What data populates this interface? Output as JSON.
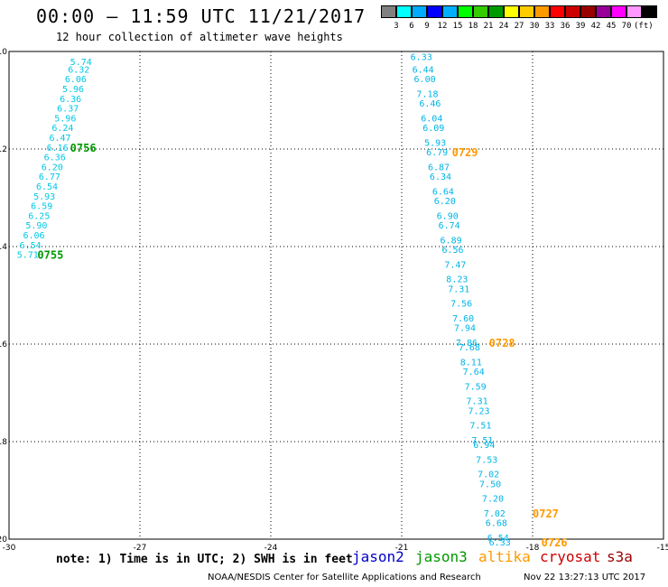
{
  "header": {
    "title": "00:00 — 11:59 UTC 11/21/2017",
    "subtitle": "12 hour collection of altimeter wave heights"
  },
  "colorbar": {
    "colors": [
      "#808080",
      "#00ffff",
      "#00aaff",
      "#0000ff",
      "#00b0ff",
      "#00ff00",
      "#33cc00",
      "#009900",
      "#ffff00",
      "#ffcc00",
      "#ff9900",
      "#ff0000",
      "#cc0000",
      "#990000",
      "#990099",
      "#ff00ff",
      "#ff99ff",
      "#000000"
    ],
    "labels": [
      "3",
      "6",
      "9",
      "12",
      "15",
      "18",
      "21",
      "24",
      "27",
      "30",
      "33",
      "36",
      "39",
      "42",
      "45",
      "70",
      "(ft)"
    ]
  },
  "note": "note: 1) Time is in UTC; 2) SWH is in feet",
  "satellites": [
    {
      "name": "jason2",
      "color": "#0000cc"
    },
    {
      "name": "jason3",
      "color": "#009900"
    },
    {
      "name": "altika",
      "color": "#ff9900"
    },
    {
      "name": "cryosat",
      "color": "#cc0000"
    },
    {
      "name": "s3a",
      "color": "#990000"
    }
  ],
  "footer": {
    "left": "NOAA/NESDIS Center for Satellite Applications and Research",
    "right": "Nov 22 13:27:13 UTC 2017"
  },
  "chart_data": {
    "type": "scatter",
    "xlim": [
      -30,
      -15
    ],
    "ylim": [
      -20,
      -10
    ],
    "xticks": [
      "-30",
      "-27",
      "-24",
      "-21",
      "-18",
      "-15"
    ],
    "xtick_values": [
      -30,
      -27,
      -24,
      -21,
      -18,
      -15
    ],
    "yticks": [
      "-10",
      "-12",
      "-14",
      "-16",
      "-18",
      "-20"
    ],
    "ytick_values": [
      -10,
      -12,
      -14,
      -16,
      -18,
      -20
    ],
    "grid": true,
    "series": [
      {
        "name": "jason3",
        "label_color": "#009900",
        "value_color": "#00c8e6",
        "points": [
          {
            "x": -28.6,
            "y": -10.2,
            "v": "5.74"
          },
          {
            "x": -28.65,
            "y": -10.36,
            "v": "6.32"
          },
          {
            "x": -28.72,
            "y": -10.56,
            "v": "6.06"
          },
          {
            "x": -28.78,
            "y": -10.76,
            "v": "5.96"
          },
          {
            "x": -28.84,
            "y": -10.96,
            "v": "6.36"
          },
          {
            "x": -28.9,
            "y": -11.16,
            "v": "6.37"
          },
          {
            "x": -28.96,
            "y": -11.36,
            "v": "5.96"
          },
          {
            "x": -29.02,
            "y": -11.56,
            "v": "6.24"
          },
          {
            "x": -29.08,
            "y": -11.76,
            "v": "6.47"
          },
          {
            "x": -29.14,
            "y": -11.96,
            "v": "6.16"
          },
          {
            "x": -29.2,
            "y": -12.16,
            "v": "6.36"
          },
          {
            "x": -29.26,
            "y": -12.36,
            "v": "6.20"
          },
          {
            "x": -29.32,
            "y": -12.56,
            "v": "6.77"
          },
          {
            "x": -29.38,
            "y": -12.76,
            "v": "6.54"
          },
          {
            "x": -29.44,
            "y": -12.96,
            "v": "5.93"
          },
          {
            "x": -29.5,
            "y": -13.16,
            "v": "6.59"
          },
          {
            "x": -29.56,
            "y": -13.36,
            "v": "6.25"
          },
          {
            "x": -29.62,
            "y": -13.56,
            "v": "5.90"
          },
          {
            "x": -29.68,
            "y": -13.76,
            "v": "6.06"
          },
          {
            "x": -29.76,
            "y": -13.96,
            "v": "6.54"
          },
          {
            "x": -29.82,
            "y": -14.16,
            "v": "5.71"
          }
        ],
        "times": [
          {
            "x": -28.6,
            "y": -11.96,
            "t": "0756"
          },
          {
            "x": -29.35,
            "y": -14.16,
            "t": "0755"
          }
        ]
      },
      {
        "name": "altika",
        "label_color": "#ff9900",
        "value_color": "#00b4e6",
        "points": [
          {
            "x": -20.8,
            "y": -10.1,
            "v": "6.33"
          },
          {
            "x": -20.76,
            "y": -10.36,
            "v": "6.44"
          },
          {
            "x": -20.72,
            "y": -10.56,
            "v": "6.00"
          },
          {
            "x": -20.66,
            "y": -10.86,
            "v": "7.18"
          },
          {
            "x": -20.6,
            "y": -11.06,
            "v": "6.46"
          },
          {
            "x": -20.56,
            "y": -11.36,
            "v": "6.04"
          },
          {
            "x": -20.52,
            "y": -11.56,
            "v": "6.09"
          },
          {
            "x": -20.48,
            "y": -11.86,
            "v": "5.93"
          },
          {
            "x": -20.44,
            "y": -12.06,
            "v": "6.79"
          },
          {
            "x": -20.4,
            "y": -12.36,
            "v": "6.87"
          },
          {
            "x": -20.36,
            "y": -12.56,
            "v": "6.34"
          },
          {
            "x": -20.3,
            "y": -12.86,
            "v": "6.64"
          },
          {
            "x": -20.26,
            "y": -13.06,
            "v": "6.20"
          },
          {
            "x": -20.2,
            "y": -13.36,
            "v": "6.90"
          },
          {
            "x": -20.16,
            "y": -13.56,
            "v": "6.74"
          },
          {
            "x": -20.12,
            "y": -13.86,
            "v": "6.89"
          },
          {
            "x": -20.08,
            "y": -14.06,
            "v": "6.56"
          },
          {
            "x": -20.02,
            "y": -14.36,
            "v": "7.47"
          },
          {
            "x": -19.98,
            "y": -14.66,
            "v": "8.23"
          },
          {
            "x": -19.94,
            "y": -14.86,
            "v": "7.31"
          },
          {
            "x": -19.88,
            "y": -15.16,
            "v": "7.56"
          },
          {
            "x": -19.84,
            "y": -15.46,
            "v": "7.60"
          },
          {
            "x": -19.8,
            "y": -15.66,
            "v": "7.94"
          },
          {
            "x": -19.76,
            "y": -15.96,
            "v": "7.86"
          },
          {
            "x": -19.7,
            "y": -16.06,
            "v": "7.68"
          },
          {
            "x": -19.66,
            "y": -16.36,
            "v": "8.11"
          },
          {
            "x": -19.6,
            "y": -16.56,
            "v": "7.64"
          },
          {
            "x": -19.56,
            "y": -16.86,
            "v": "7.59"
          },
          {
            "x": -19.52,
            "y": -17.16,
            "v": "7.31"
          },
          {
            "x": -19.48,
            "y": -17.36,
            "v": "7.23"
          },
          {
            "x": -19.44,
            "y": -17.66,
            "v": "7.51"
          },
          {
            "x": -19.4,
            "y": -17.96,
            "v": "7.51"
          },
          {
            "x": -19.36,
            "y": -18.06,
            "v": "6.94"
          },
          {
            "x": -19.3,
            "y": -18.36,
            "v": "7.53"
          },
          {
            "x": -19.26,
            "y": -18.66,
            "v": "7.02"
          },
          {
            "x": -19.22,
            "y": -18.86,
            "v": "7.50"
          },
          {
            "x": -19.16,
            "y": -19.16,
            "v": "7.20"
          },
          {
            "x": -19.12,
            "y": -19.46,
            "v": "7.02"
          },
          {
            "x": -19.08,
            "y": -19.66,
            "v": "6.68"
          },
          {
            "x": -19.04,
            "y": -19.96,
            "v": "6.54"
          },
          {
            "x": -19.0,
            "y": -20.06,
            "v": "6.33"
          }
        ],
        "times": [
          {
            "x": -19.85,
            "y": -12.06,
            "t": "0729"
          },
          {
            "x": -19.0,
            "y": -15.96,
            "t": "0728"
          },
          {
            "x": -18.0,
            "y": -19.46,
            "t": "0727"
          },
          {
            "x": -17.8,
            "y": -20.06,
            "t": "0726"
          }
        ]
      }
    ]
  }
}
